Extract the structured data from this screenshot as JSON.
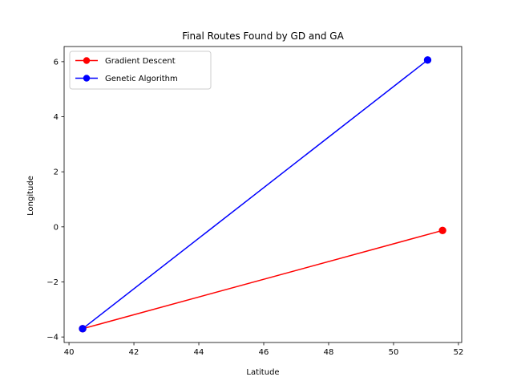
{
  "chart_data": {
    "type": "line",
    "title": "Final Routes Found by GD and GA",
    "xlabel": "Latitude",
    "ylabel": "Longitude",
    "xlim": [
      39.85,
      52.1
    ],
    "ylim": [
      -4.2,
      6.55
    ],
    "xticks": [
      40,
      42,
      44,
      46,
      48,
      50,
      52
    ],
    "yticks": [
      -4,
      -2,
      0,
      2,
      4,
      6
    ],
    "grid": false,
    "legend_position": "top-left",
    "series": [
      {
        "name": "Gradient Descent",
        "color": "#ff0000",
        "marker": "circle",
        "points": [
          {
            "x": 40.42,
            "y": -3.7
          },
          {
            "x": 51.51,
            "y": -0.13
          }
        ]
      },
      {
        "name": "Genetic Algorithm",
        "color": "#0000ff",
        "marker": "circle",
        "points": [
          {
            "x": 40.42,
            "y": -3.7
          },
          {
            "x": 51.05,
            "y": 6.06
          }
        ]
      }
    ]
  }
}
